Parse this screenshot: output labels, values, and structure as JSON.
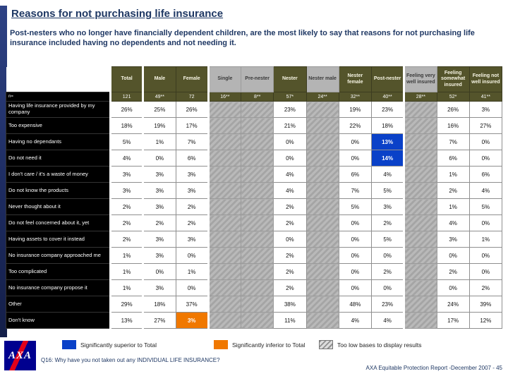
{
  "slide": {
    "title": "Reasons for not purchasing life insurance",
    "subtitle": "Post-nesters who no longer have financially dependent children, are the most likely to say that reasons for not purchasing life insurance included having no dependents and not needing it.",
    "logo_text": "AXA",
    "footer": {
      "question": "Q16: Why have you not taken out any INDIVIDUAL LIFE INSURANCE?",
      "report": "AXA Equitable Protection Report -December 2007 - 45"
    }
  },
  "legend": [
    {
      "key": "superior",
      "label": "Significantly superior to Total",
      "color": "#0a41c8"
    },
    {
      "key": "inferior",
      "label": "Significantly inferior to Total",
      "color": "#f07800"
    },
    {
      "key": "low_base",
      "label": "Too low bases to display results",
      "color": "#b4b4b4"
    }
  ],
  "colors": {
    "title_navy": "#1f3864",
    "header_olive": "#54542b",
    "row_label_black": "#000000",
    "superior_blue": "#0a41c8",
    "inferior_orange": "#f07800",
    "masked_gray": "#b4b4b4",
    "axa_blue": "#00008f",
    "axa_red": "#e2001a"
  },
  "chart_data": {
    "type": "table",
    "title": "Reasons for not purchasing life insurance",
    "base_row_label": "n=",
    "columns": [
      "Total",
      "Male",
      "Female",
      "Single",
      "Pre-nester",
      "Nester",
      "Nester male",
      "Nester female",
      "Post-nester",
      "Feeling very well insured",
      "Feeling somewhat insured",
      "Feeling not well insured"
    ],
    "bases": [
      "121",
      "49**",
      "72",
      "16**",
      "8**",
      "57*",
      "24**",
      "32**",
      "40**",
      "28**",
      "52*",
      "41**"
    ],
    "masked_column_indices": [
      3,
      4,
      6,
      9
    ],
    "group_start_indices": [
      0,
      1,
      3,
      9
    ],
    "rows": [
      {
        "label": "Having life insurance provided by my company",
        "values": [
          "26%",
          "25%",
          "26%",
          "",
          "",
          "23%",
          "",
          "19%",
          "23%",
          "",
          "26%",
          "3%"
        ],
        "highlights": {}
      },
      {
        "label": "Too expensive",
        "values": [
          "18%",
          "19%",
          "17%",
          "",
          "",
          "21%",
          "",
          "22%",
          "18%",
          "",
          "16%",
          "27%"
        ],
        "highlights": {}
      },
      {
        "label": "Having no dependants",
        "values": [
          "5%",
          "1%",
          "7%",
          "",
          "",
          "0%",
          "",
          "0%",
          "13%",
          "",
          "7%",
          "0%"
        ],
        "highlights": {
          "8": "superior"
        }
      },
      {
        "label": "Do not need it",
        "values": [
          "4%",
          "0%",
          "6%",
          "",
          "",
          "0%",
          "",
          "0%",
          "14%",
          "",
          "6%",
          "0%"
        ],
        "highlights": {
          "8": "superior"
        }
      },
      {
        "label": "I don't care / it's a waste of money",
        "values": [
          "3%",
          "3%",
          "3%",
          "",
          "",
          "4%",
          "",
          "6%",
          "4%",
          "",
          "1%",
          "6%"
        ],
        "highlights": {}
      },
      {
        "label": "Do not know the products",
        "values": [
          "3%",
          "3%",
          "3%",
          "",
          "",
          "4%",
          "",
          "7%",
          "5%",
          "",
          "2%",
          "4%"
        ],
        "highlights": {}
      },
      {
        "label": "Never thought about it",
        "values": [
          "2%",
          "3%",
          "2%",
          "",
          "",
          "2%",
          "",
          "5%",
          "3%",
          "",
          "1%",
          "5%"
        ],
        "highlights": {}
      },
      {
        "label": "Do not feel concerned about it, yet",
        "values": [
          "2%",
          "2%",
          "2%",
          "",
          "",
          "2%",
          "",
          "0%",
          "2%",
          "",
          "4%",
          "0%"
        ],
        "highlights": {}
      },
      {
        "label": "Having assets to cover it instead",
        "values": [
          "2%",
          "3%",
          "3%",
          "",
          "",
          "0%",
          "",
          "0%",
          "5%",
          "",
          "3%",
          "1%"
        ],
        "highlights": {}
      },
      {
        "label": "No insurance company approached me",
        "values": [
          "1%",
          "3%",
          "0%",
          "",
          "",
          "2%",
          "",
          "0%",
          "0%",
          "",
          "0%",
          "0%"
        ],
        "highlights": {}
      },
      {
        "label": "Too complicated",
        "values": [
          "1%",
          "0%",
          "1%",
          "",
          "",
          "2%",
          "",
          "0%",
          "2%",
          "",
          "2%",
          "0%"
        ],
        "highlights": {}
      },
      {
        "label": "No insurance company propose it",
        "values": [
          "1%",
          "3%",
          "0%",
          "",
          "",
          "2%",
          "",
          "0%",
          "0%",
          "",
          "0%",
          "2%"
        ],
        "highlights": {}
      },
      {
        "label": "Other",
        "values": [
          "29%",
          "18%",
          "37%",
          "",
          "",
          "38%",
          "",
          "48%",
          "23%",
          "",
          "24%",
          "39%"
        ],
        "highlights": {}
      },
      {
        "label": "Don't know",
        "values": [
          "13%",
          "27%",
          "3%",
          "",
          "",
          "11%",
          "",
          "4%",
          "4%",
          "",
          "17%",
          "12%"
        ],
        "highlights": {
          "2": "inferior"
        }
      }
    ]
  }
}
